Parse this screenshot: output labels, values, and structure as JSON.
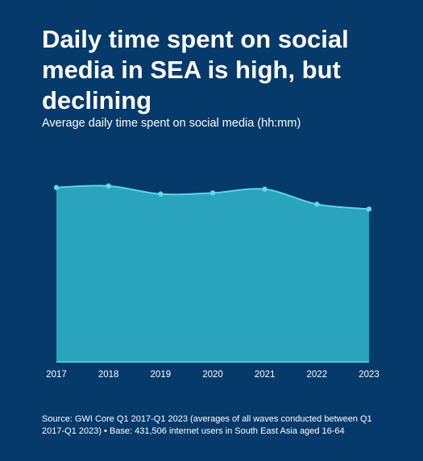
{
  "header": {
    "title": "Daily time spent on social media in SEA is high, but declining",
    "subtitle": "Average daily time spent on social media (hh:mm)"
  },
  "footer": {
    "source": "Source: GWI Core Q1 2017-Q1 2023 (averages of all waves conducted between Q1 2017-Q1 2023) • Base: 431,506 internet users in South East Asia aged 16-64"
  },
  "colors": {
    "background": "#053a6b",
    "area_fill": "#2aa3bd",
    "line": "#5fd3ea",
    "point": "#66d8ee",
    "baseline": "#4fc4de",
    "text": "#ffffff"
  },
  "chart_data": {
    "type": "area",
    "x": [
      "2017",
      "2018",
      "2019",
      "2020",
      "2021",
      "2022",
      "2023"
    ],
    "series": [
      {
        "values": [
          3.24,
          3.27,
          3.12,
          3.14,
          3.21,
          2.93,
          2.84
        ]
      }
    ],
    "ylim": [
      0,
      4
    ],
    "title": "",
    "xlabel": "",
    "ylabel": "",
    "grid": false,
    "legend": "none",
    "y_tick_labels": "none"
  }
}
